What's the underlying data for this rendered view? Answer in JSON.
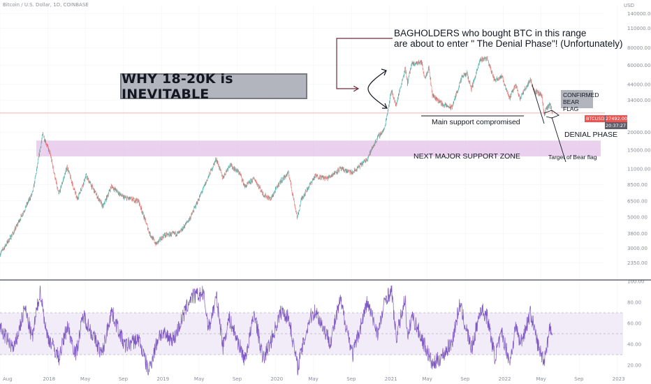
{
  "header": {
    "symbol": "Bitcoin / U.S. Dollar, 1D, COINBASE",
    "currency": "USD"
  },
  "annotations": {
    "title": "WHY 18-20K is INEVITABLE",
    "bagholders_line1": "BAGHOLDERS who bought BTC in this range",
    "bagholders_line2": "are about to enter \" The Denial Phase\"! (Unfortunately)",
    "main_support": "Main support compromised",
    "confirmed_line1": "CONFIRMED",
    "confirmed_line2": "BEAR FLAG",
    "denial_phase": "DENIAL PHASE",
    "support_zone": "NEXT MAJOR SUPPORT ZONE",
    "target": "Target of Bear flag"
  },
  "price_tag": {
    "ticker": "BTCUSD",
    "price": "27492.00",
    "countdown": "20:37:27"
  },
  "colors": {
    "up_candle": "#26a69a",
    "down_candle": "#ef5350",
    "support_zone": "#e1bee7",
    "rsi_line": "#7e57c2",
    "rsi_band": "#ede7f6",
    "annotation_box": "#b2b5be"
  },
  "chart_data": [
    {
      "type": "candlestick",
      "name": "BTCUSD",
      "scale": "log",
      "ylim": [
        1800,
        160000
      ],
      "xlim": [
        "2017-08-01",
        "2023-01-15"
      ],
      "x_ticks": [
        "Aug",
        "2018",
        "May",
        "Sep",
        "2019",
        "May",
        "Sep",
        "2020",
        "May",
        "Sep",
        "2021",
        "May",
        "Sep",
        "2022",
        "May",
        "Sep",
        "2023"
      ],
      "y_ticks": [
        "140000.00",
        "110000.00",
        "80000.00",
        "60000.00",
        "44000.00",
        "34000.00",
        "20000.00",
        "15000.00",
        "11000.00",
        "8500.00",
        "6500.00",
        "5000.00",
        "3800.00",
        "3000.00",
        "2350.00"
      ],
      "y_tick_values": [
        140000,
        110000,
        80000,
        60000,
        44000,
        34000,
        20000,
        15000,
        11000,
        8500,
        6500,
        5000,
        3800,
        3000,
        2350
      ],
      "last_price": 27492,
      "support_zone": [
        13500,
        17500
      ],
      "key_points": [
        {
          "date": "2017-08-01",
          "price": 2700
        },
        {
          "date": "2017-09-15",
          "price": 3900
        },
        {
          "date": "2017-11-15",
          "price": 7500
        },
        {
          "date": "2017-12-17",
          "price": 19500
        },
        {
          "date": "2018-01-10",
          "price": 14000
        },
        {
          "date": "2018-02-06",
          "price": 7200
        },
        {
          "date": "2018-03-05",
          "price": 11400
        },
        {
          "date": "2018-04-06",
          "price": 6700
        },
        {
          "date": "2018-05-05",
          "price": 9800
        },
        {
          "date": "2018-06-28",
          "price": 5900
        },
        {
          "date": "2018-07-25",
          "price": 8300
        },
        {
          "date": "2018-09-01",
          "price": 6900
        },
        {
          "date": "2018-10-20",
          "price": 6500
        },
        {
          "date": "2018-11-25",
          "price": 3800
        },
        {
          "date": "2018-12-15",
          "price": 3200
        },
        {
          "date": "2019-01-10",
          "price": 3700
        },
        {
          "date": "2019-03-01",
          "price": 3850
        },
        {
          "date": "2019-04-05",
          "price": 5000
        },
        {
          "date": "2019-05-15",
          "price": 7900
        },
        {
          "date": "2019-06-26",
          "price": 13000
        },
        {
          "date": "2019-07-17",
          "price": 9500
        },
        {
          "date": "2019-08-08",
          "price": 11800
        },
        {
          "date": "2019-09-10",
          "price": 10200
        },
        {
          "date": "2019-09-26",
          "price": 8200
        },
        {
          "date": "2019-10-26",
          "price": 9400
        },
        {
          "date": "2019-11-25",
          "price": 7200
        },
        {
          "date": "2019-12-18",
          "price": 6700
        },
        {
          "date": "2020-01-15",
          "price": 8800
        },
        {
          "date": "2020-02-13",
          "price": 10300
        },
        {
          "date": "2020-03-12",
          "price": 4900
        },
        {
          "date": "2020-03-25",
          "price": 6700
        },
        {
          "date": "2020-05-08",
          "price": 9800
        },
        {
          "date": "2020-06-15",
          "price": 9400
        },
        {
          "date": "2020-07-27",
          "price": 11000
        },
        {
          "date": "2020-09-05",
          "price": 10300
        },
        {
          "date": "2020-10-21",
          "price": 12900
        },
        {
          "date": "2020-11-25",
          "price": 18500
        },
        {
          "date": "2020-12-16",
          "price": 21000
        },
        {
          "date": "2021-01-08",
          "price": 40000
        },
        {
          "date": "2021-01-22",
          "price": 31000
        },
        {
          "date": "2021-02-21",
          "price": 57000
        },
        {
          "date": "2021-02-28",
          "price": 45000
        },
        {
          "date": "2021-03-13",
          "price": 61000
        },
        {
          "date": "2021-04-14",
          "price": 63500
        },
        {
          "date": "2021-04-25",
          "price": 49000
        },
        {
          "date": "2021-05-08",
          "price": 58000
        },
        {
          "date": "2021-05-19",
          "price": 37000
        },
        {
          "date": "2021-06-22",
          "price": 31500
        },
        {
          "date": "2021-07-20",
          "price": 30000
        },
        {
          "date": "2021-08-23",
          "price": 50000
        },
        {
          "date": "2021-09-07",
          "price": 52500
        },
        {
          "date": "2021-09-21",
          "price": 41000
        },
        {
          "date": "2021-10-20",
          "price": 66000
        },
        {
          "date": "2021-11-10",
          "price": 68000
        },
        {
          "date": "2021-12-04",
          "price": 47000
        },
        {
          "date": "2021-12-27",
          "price": 50500
        },
        {
          "date": "2022-01-22",
          "price": 35000
        },
        {
          "date": "2022-02-10",
          "price": 44000
        },
        {
          "date": "2022-02-24",
          "price": 35000
        },
        {
          "date": "2022-03-29",
          "price": 47500
        },
        {
          "date": "2022-04-11",
          "price": 39500
        },
        {
          "date": "2022-05-05",
          "price": 37000
        },
        {
          "date": "2022-05-12",
          "price": 27000
        },
        {
          "date": "2022-05-20",
          "price": 29500
        },
        {
          "date": "2022-05-31",
          "price": 31500
        },
        {
          "date": "2022-06-08",
          "price": 27492
        }
      ]
    },
    {
      "type": "line",
      "name": "RSI",
      "ylim": [
        10,
        100
      ],
      "y_ticks": [
        "100.00",
        "80.00",
        "60.00",
        "40.00",
        "20.00"
      ],
      "y_tick_values": [
        100,
        80,
        60,
        40,
        20
      ],
      "band": [
        30,
        70
      ],
      "midline": 50,
      "key_points": [
        {
          "date": "2017-08-01",
          "value": 55
        },
        {
          "date": "2017-09-15",
          "value": 35
        },
        {
          "date": "2017-10-20",
          "value": 75
        },
        {
          "date": "2017-11-12",
          "value": 45
        },
        {
          "date": "2017-12-08",
          "value": 92
        },
        {
          "date": "2017-12-28",
          "value": 50
        },
        {
          "date": "2018-02-06",
          "value": 27
        },
        {
          "date": "2018-03-05",
          "value": 58
        },
        {
          "date": "2018-04-01",
          "value": 30
        },
        {
          "date": "2018-04-25",
          "value": 68
        },
        {
          "date": "2018-06-24",
          "value": 30
        },
        {
          "date": "2018-07-24",
          "value": 72
        },
        {
          "date": "2018-09-05",
          "value": 38
        },
        {
          "date": "2018-10-20",
          "value": 45
        },
        {
          "date": "2018-11-20",
          "value": 14
        },
        {
          "date": "2018-12-25",
          "value": 50
        },
        {
          "date": "2019-02-10",
          "value": 45
        },
        {
          "date": "2019-04-05",
          "value": 85
        },
        {
          "date": "2019-05-15",
          "value": 88
        },
        {
          "date": "2019-06-01",
          "value": 55
        },
        {
          "date": "2019-06-26",
          "value": 85
        },
        {
          "date": "2019-07-17",
          "value": 38
        },
        {
          "date": "2019-08-05",
          "value": 65
        },
        {
          "date": "2019-09-25",
          "value": 25
        },
        {
          "date": "2019-10-26",
          "value": 70
        },
        {
          "date": "2019-11-22",
          "value": 25
        },
        {
          "date": "2019-12-20",
          "value": 45
        },
        {
          "date": "2020-01-20",
          "value": 72
        },
        {
          "date": "2020-02-13",
          "value": 65
        },
        {
          "date": "2020-03-12",
          "value": 18
        },
        {
          "date": "2020-04-20",
          "value": 65
        },
        {
          "date": "2020-05-08",
          "value": 72
        },
        {
          "date": "2020-06-25",
          "value": 42
        },
        {
          "date": "2020-07-27",
          "value": 82
        },
        {
          "date": "2020-09-05",
          "value": 30
        },
        {
          "date": "2020-10-21",
          "value": 80
        },
        {
          "date": "2020-11-25",
          "value": 50
        },
        {
          "date": "2020-12-20",
          "value": 85
        },
        {
          "date": "2021-01-08",
          "value": 90
        },
        {
          "date": "2021-01-22",
          "value": 45
        },
        {
          "date": "2021-02-20",
          "value": 85
        },
        {
          "date": "2021-02-28",
          "value": 42
        },
        {
          "date": "2021-03-13",
          "value": 68
        },
        {
          "date": "2021-04-25",
          "value": 38
        },
        {
          "date": "2021-05-19",
          "value": 20
        },
        {
          "date": "2021-06-22",
          "value": 30
        },
        {
          "date": "2021-07-20",
          "value": 42
        },
        {
          "date": "2021-08-14",
          "value": 78
        },
        {
          "date": "2021-09-21",
          "value": 35
        },
        {
          "date": "2021-10-20",
          "value": 74
        },
        {
          "date": "2021-11-10",
          "value": 66
        },
        {
          "date": "2021-12-04",
          "value": 28
        },
        {
          "date": "2021-12-27",
          "value": 50
        },
        {
          "date": "2022-01-22",
          "value": 23
        },
        {
          "date": "2022-02-10",
          "value": 58
        },
        {
          "date": "2022-02-24",
          "value": 40
        },
        {
          "date": "2022-03-29",
          "value": 70
        },
        {
          "date": "2022-04-25",
          "value": 35
        },
        {
          "date": "2022-05-12",
          "value": 25
        },
        {
          "date": "2022-05-31",
          "value": 58
        },
        {
          "date": "2022-06-08",
          "value": 42
        }
      ]
    }
  ]
}
